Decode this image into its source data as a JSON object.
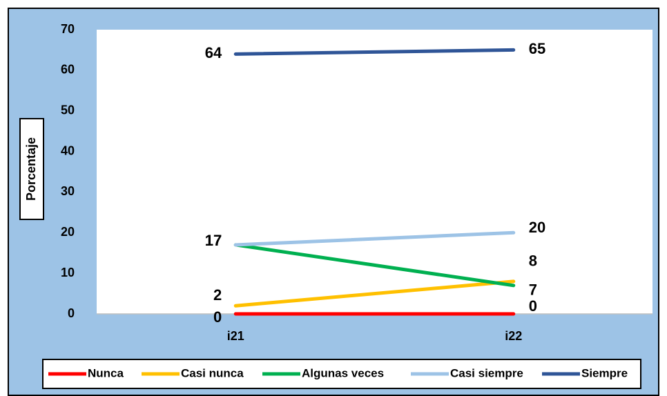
{
  "chart_data": {
    "type": "line",
    "y_label": "Porcentaje",
    "categories": [
      "i21",
      "i22"
    ],
    "series": [
      {
        "name": "Nunca",
        "color": "#ff0000",
        "values": [
          0,
          0
        ]
      },
      {
        "name": "Casi nunca",
        "color": "#ffc000",
        "values": [
          2,
          8
        ]
      },
      {
        "name": "Algunas veces",
        "color": "#00b050",
        "values": [
          17,
          7
        ]
      },
      {
        "name": "Casi siempre",
        "color": "#9dc3e6",
        "values": [
          17,
          20
        ]
      },
      {
        "name": "Siempre",
        "color": "#2f5597",
        "values": [
          64,
          65
        ]
      }
    ],
    "ylim": [
      0,
      70
    ],
    "yticks": [
      0,
      10,
      20,
      30,
      40,
      50,
      60,
      70
    ],
    "grid": false,
    "legend": "bottom"
  }
}
